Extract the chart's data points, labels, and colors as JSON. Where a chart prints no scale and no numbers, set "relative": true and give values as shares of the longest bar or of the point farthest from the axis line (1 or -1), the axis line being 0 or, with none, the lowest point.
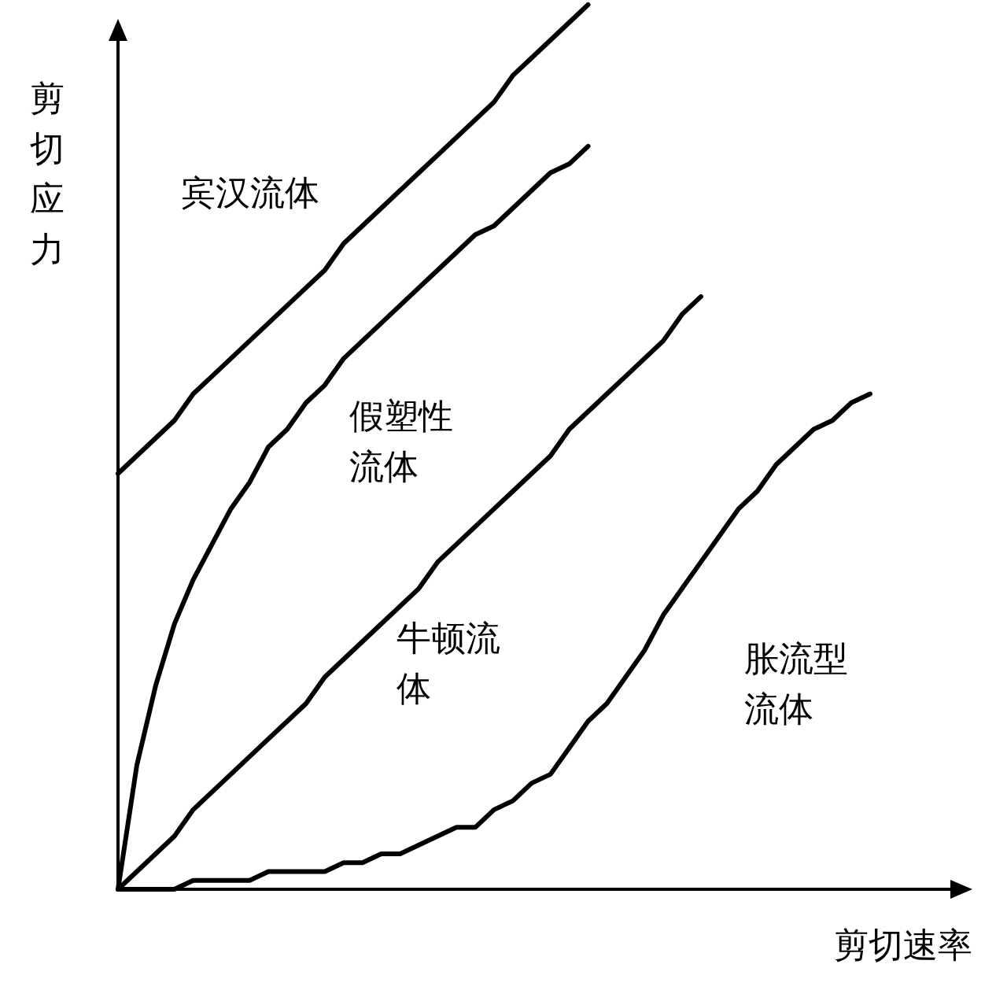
{
  "chart_data": {
    "type": "line",
    "relative": true,
    "xlabel": "剪切速率",
    "ylabel": "剪切应力",
    "categories": [
      null,
      null,
      null,
      null,
      null,
      null,
      null,
      null,
      null,
      null,
      null,
      null,
      null,
      null,
      null,
      null,
      null,
      null,
      null,
      null,
      null,
      null,
      null,
      null,
      null,
      null,
      null,
      null,
      null,
      null,
      null,
      null,
      null,
      null,
      null,
      null,
      null,
      null,
      null,
      null,
      null
    ],
    "series": [
      {
        "name": "宾汉流体",
        "color": "#000000",
        "values": [
          0.47,
          0.49,
          0.51,
          0.53,
          0.56,
          0.58,
          0.6,
          0.62,
          0.64,
          0.66,
          0.68,
          0.7,
          0.73,
          0.75,
          0.77,
          0.79,
          0.81,
          0.83,
          0.85,
          0.87,
          0.89,
          0.92,
          0.94,
          0.96,
          0.98,
          1.0,
          null,
          null,
          null,
          null,
          null,
          null,
          null,
          null,
          null,
          null,
          null,
          null,
          null,
          null,
          null
        ]
      },
      {
        "name": "假塑性流体",
        "color": "#000000",
        "values": [
          0,
          0.14,
          0.23,
          0.3,
          0.35,
          0.39,
          0.43,
          0.46,
          0.5,
          0.52,
          0.55,
          0.57,
          0.6,
          0.62,
          0.64,
          0.66,
          0.68,
          0.7,
          0.72,
          0.74,
          0.75,
          0.77,
          0.79,
          0.81,
          0.82,
          0.84,
          null,
          null,
          null,
          null,
          null,
          null,
          null,
          null,
          null,
          null,
          null,
          null,
          null,
          null,
          null
        ]
      },
      {
        "name": "牛顿流体",
        "color": "#000000",
        "values": [
          0,
          0.02,
          0.04,
          0.06,
          0.09,
          0.11,
          0.13,
          0.15,
          0.17,
          0.19,
          0.21,
          0.24,
          0.26,
          0.28,
          0.3,
          0.32,
          0.34,
          0.37,
          0.39,
          0.41,
          0.43,
          0.45,
          0.47,
          0.49,
          0.52,
          0.54,
          0.56,
          0.58,
          0.6,
          0.62,
          0.65,
          0.67,
          null,
          null,
          null,
          null,
          null,
          null,
          null,
          null,
          null
        ]
      },
      {
        "name": "胀流型流体",
        "color": "#000000",
        "values": [
          0,
          0,
          0,
          0,
          0.01,
          0.01,
          0.01,
          0.01,
          0.02,
          0.02,
          0.02,
          0.02,
          0.03,
          0.03,
          0.04,
          0.04,
          0.05,
          0.06,
          0.07,
          0.07,
          0.09,
          0.1,
          0.12,
          0.13,
          0.16,
          0.19,
          0.21,
          0.24,
          0.27,
          0.31,
          0.34,
          0.37,
          0.4,
          0.43,
          0.45,
          0.48,
          0.5,
          0.52,
          0.53,
          0.55,
          0.56
        ]
      }
    ]
  }
}
